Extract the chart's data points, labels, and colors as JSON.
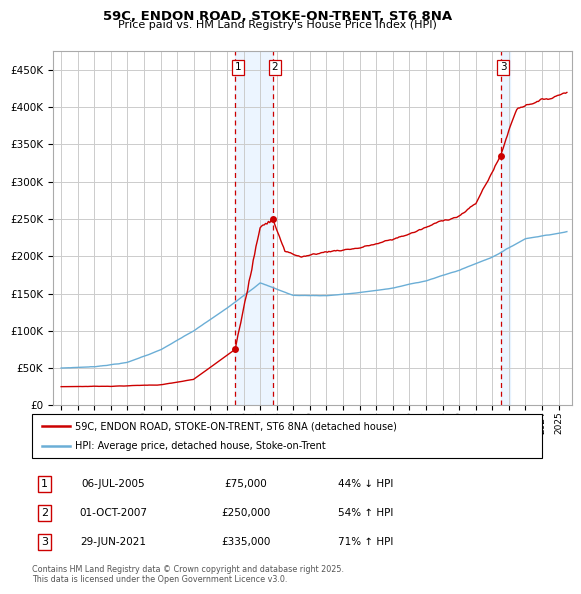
{
  "title": "59C, ENDON ROAD, STOKE-ON-TRENT, ST6 8NA",
  "subtitle": "Price paid vs. HM Land Registry's House Price Index (HPI)",
  "legend_line1": "59C, ENDON ROAD, STOKE-ON-TRENT, ST6 8NA (detached house)",
  "legend_line2": "HPI: Average price, detached house, Stoke-on-Trent",
  "footer": "Contains HM Land Registry data © Crown copyright and database right 2025.\nThis data is licensed under the Open Government Licence v3.0.",
  "transactions": [
    {
      "num": "1",
      "date": "06-JUL-2005",
      "price": 75000,
      "pct": "44%",
      "dir": "↓",
      "x": 2005.5
    },
    {
      "num": "2",
      "date": "01-OCT-2007",
      "price": 250000,
      "pct": "54%",
      "dir": "↑",
      "x": 2007.75
    },
    {
      "num": "3",
      "date": "29-JUN-2021",
      "price": 335000,
      "pct": "71%",
      "dir": "↑",
      "x": 2021.5
    }
  ],
  "hpi_color": "#6baed6",
  "price_color": "#cc0000",
  "background_color": "#ffffff",
  "grid_color": "#cccccc",
  "shading_color": "#ddeeff",
  "ylim": [
    0,
    475000
  ],
  "yticks": [
    0,
    50000,
    100000,
    150000,
    200000,
    250000,
    300000,
    350000,
    400000,
    450000
  ],
  "xlim": [
    1994.5,
    2025.8
  ]
}
